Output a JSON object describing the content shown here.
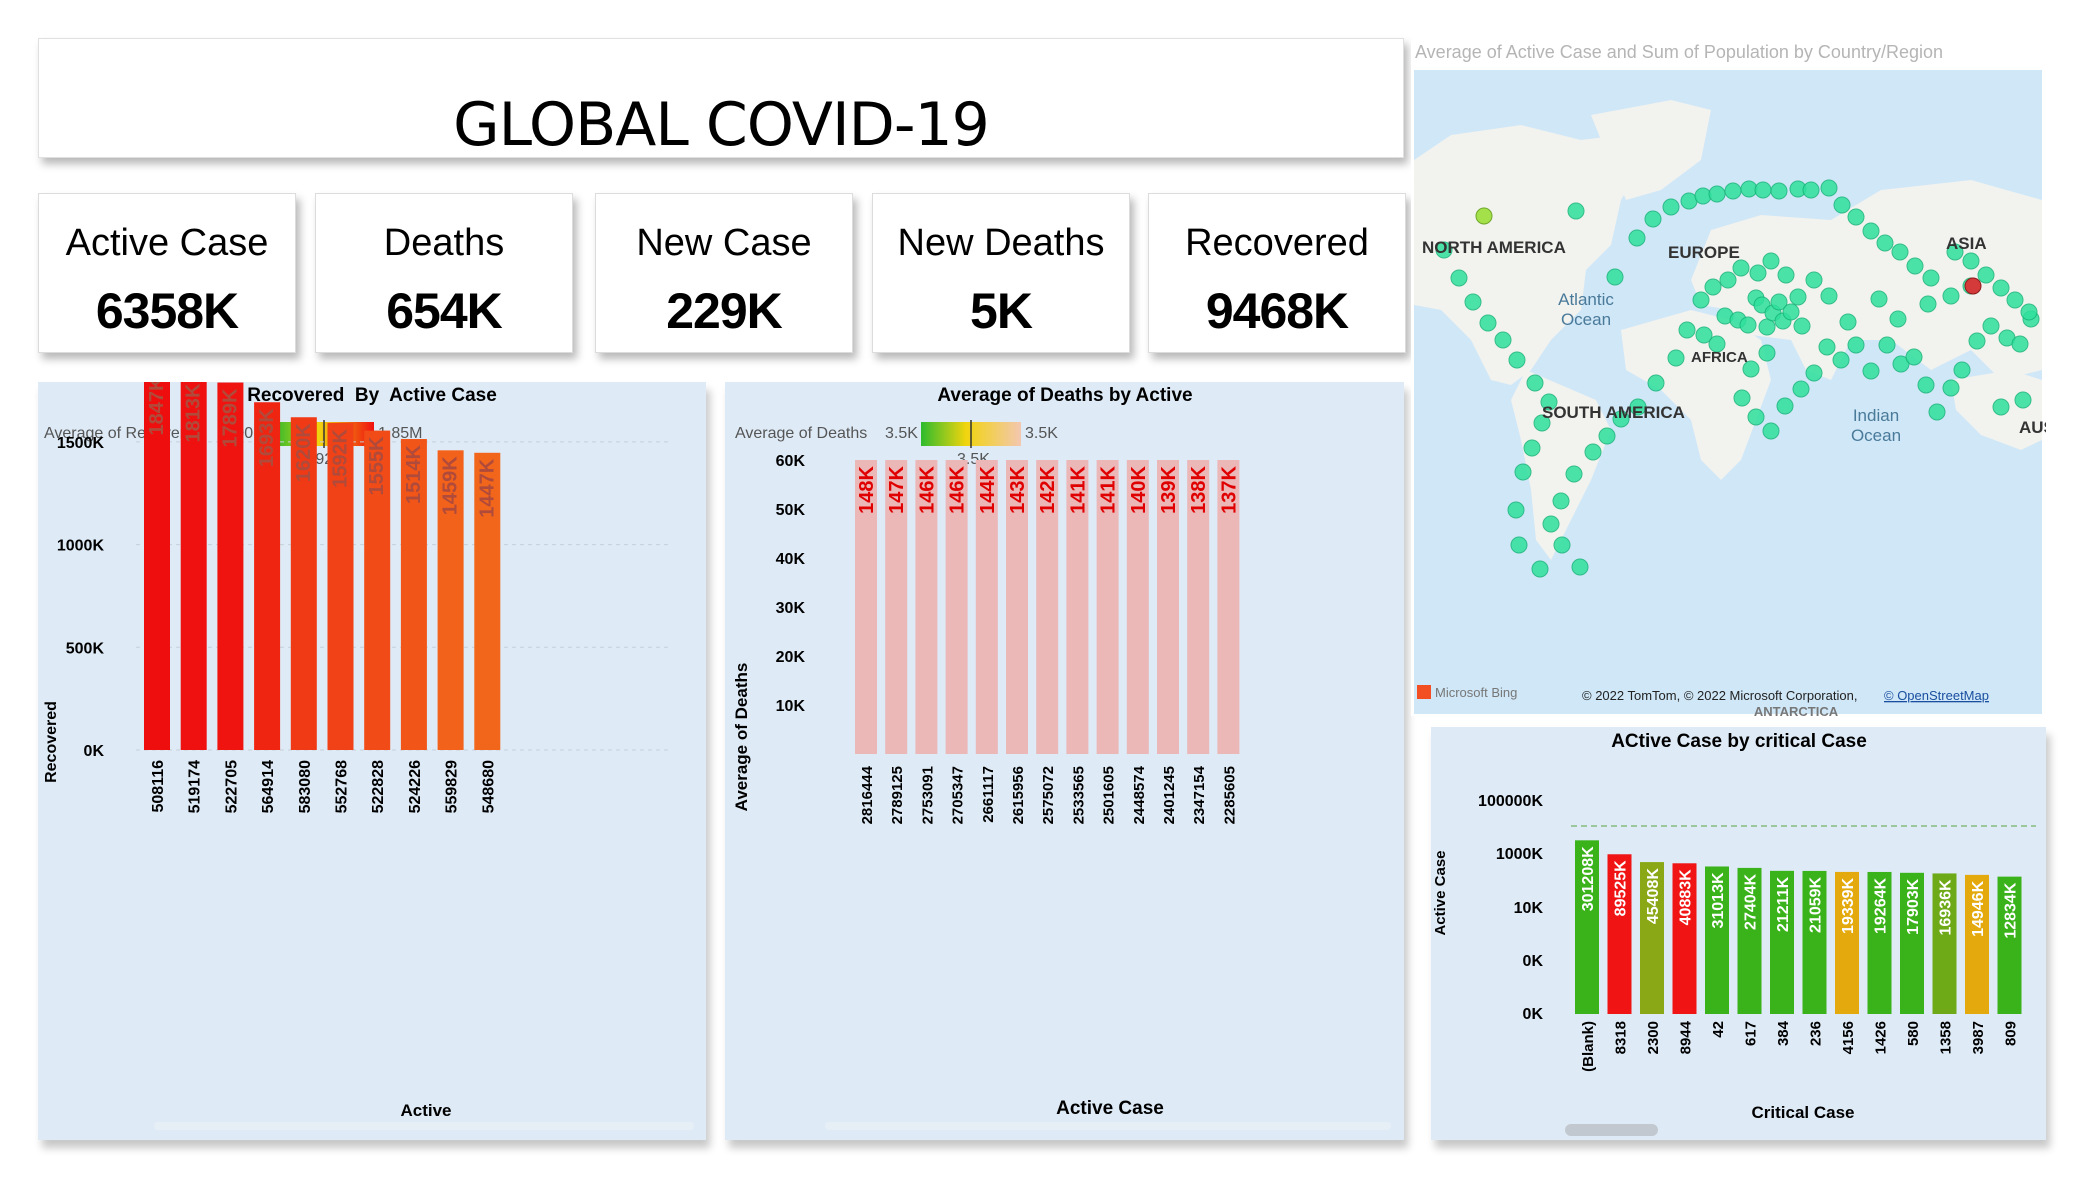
{
  "header": {
    "title": "GLOBAL COVID-19"
  },
  "kpis": [
    {
      "label": "Active Case",
      "value": "6358K"
    },
    {
      "label": "Deaths",
      "value": "654K"
    },
    {
      "label": "New Case",
      "value": "229K"
    },
    {
      "label": "New Deaths",
      "value": "5K"
    },
    {
      "label": "Recovered",
      "value": "9468K"
    }
  ],
  "map": {
    "title": "Average of Active  Case and Sum of Population by Country/Region",
    "labels": [
      "NORTH AMERICA",
      "EUROPE",
      "ASIA",
      "Atlantic",
      "Ocean",
      "AFRICA",
      "SOUTH AMERICA",
      "Indian",
      "Ocean",
      "AUSTR",
      "ANTARCTICA"
    ],
    "attribution": "© 2022 TomTom, © 2022 Microsoft Corporation,",
    "attribution_link": "© OpenStreetMap",
    "bing": "Microsoft Bing",
    "colors": {
      "water": "#cfe7f7",
      "land": "#f2f2ef",
      "bubble": "#2fe09c",
      "bubble_stroke": "#14b477"
    }
  },
  "chart_data": [
    {
      "type": "bar",
      "title": "Recovered  By  Active Case",
      "xlabel": "Active",
      "ylabel": "Recovered",
      "legend": {
        "label": "Average of Recovered",
        "min": "0.00M",
        "mid": "0.92M",
        "max": "1.85M"
      },
      "categories": [
        "508116",
        "519174",
        "522705",
        "564914",
        "583080",
        "552768",
        "522828",
        "524226",
        "559829",
        "548680"
      ],
      "values": [
        1847,
        1813,
        1789,
        1693,
        1620,
        1592,
        1555,
        1514,
        1459,
        1447
      ],
      "data_labels": [
        "1847K",
        "1813K",
        "1789K",
        "1693K",
        "1620K",
        "1592K",
        "1555K",
        "1514K",
        "1459K",
        "1447K"
      ],
      "ylim": [
        0,
        1850
      ],
      "yticks": [
        0,
        500,
        1000,
        1500
      ],
      "ytick_labels": [
        "0K",
        "500K",
        "1000K",
        "1500K"
      ],
      "colors": [
        "#ee0e0e",
        "#ef1010",
        "#ef1410",
        "#ef2512",
        "#f03a15",
        "#f04216",
        "#f14b17",
        "#f15618",
        "#f2621a",
        "#f2661b"
      ]
    },
    {
      "type": "bar",
      "title": "Average of Deaths by Active",
      "xlabel": "Active Case",
      "ylabel": "Average of Deaths",
      "legend": {
        "label": "Average of Deaths",
        "min": "3.5K",
        "mid": "3.5K",
        "max": "3.5K"
      },
      "categories": [
        "2816444",
        "2789125",
        "2753091",
        "2705347",
        "2661117",
        "2615956",
        "2575072",
        "2533565",
        "2501605",
        "2448574",
        "2401245",
        "2347154",
        "2285605"
      ],
      "values": [
        148,
        147,
        146,
        146,
        144,
        143,
        142,
        141,
        141,
        140,
        139,
        138,
        137
      ],
      "data_labels": [
        "148K",
        "147K",
        "146K",
        "146K",
        "144K",
        "143K",
        "142K",
        "141K",
        "141K",
        "140K",
        "139K",
        "138K",
        "137K"
      ],
      "ylim": [
        0,
        60
      ],
      "yticks": [
        10,
        20,
        30,
        40,
        50,
        60
      ],
      "ytick_labels": [
        "10K",
        "20K",
        "30K",
        "40K",
        "50K",
        "60K"
      ],
      "bar_color": "#ebb7b7",
      "label_color": "#e00000"
    },
    {
      "type": "bar",
      "title": "ACtive Case by critical Case",
      "xlabel": "Critical Case",
      "ylabel": "Active Case",
      "categories": [
        "(Blank)",
        "8318",
        "2300",
        "8944",
        "42",
        "617",
        "384",
        "236",
        "4156",
        "1426",
        "580",
        "1358",
        "3987",
        "809"
      ],
      "data_labels": [
        "301208K",
        "89525K",
        "45408K",
        "40883K",
        "31013K",
        "27404K",
        "21211K",
        "21059K",
        "19339K",
        "19264K",
        "17903K",
        "16936K",
        "14946K",
        "12834K"
      ],
      "values": [
        301208,
        89525,
        45408,
        40883,
        31013,
        27404,
        21211,
        21059,
        19339,
        19264,
        17903,
        16936,
        14946,
        12834
      ],
      "yscale": "log",
      "ytick_labels": [
        "0K",
        "0K",
        "10K",
        "1000K",
        "100000K"
      ],
      "colors": [
        "#3ab21a",
        "#f01414",
        "#8aa815",
        "#f01414",
        "#3ab21a",
        "#3ab21a",
        "#3ab21a",
        "#3ab21a",
        "#e3a90d",
        "#3ab21a",
        "#3ab21a",
        "#6ea918",
        "#e3a90d",
        "#3ab21a"
      ]
    }
  ]
}
